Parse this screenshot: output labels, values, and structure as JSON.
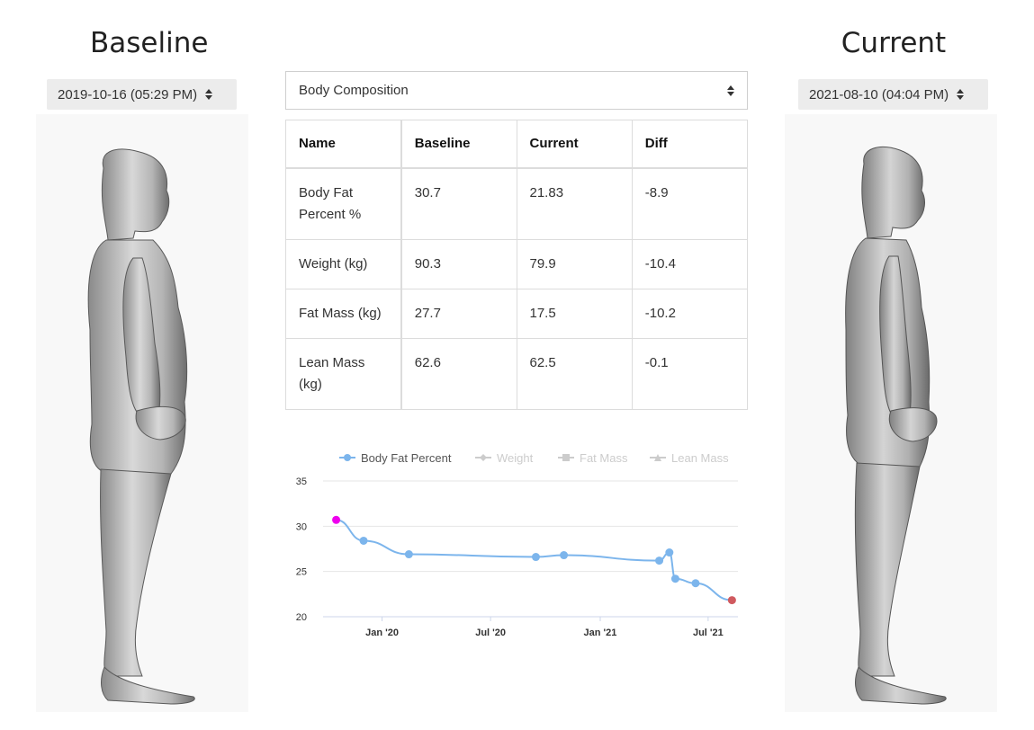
{
  "baseline": {
    "title": "Baseline",
    "date": "2019-10-16 (05:29 PM)"
  },
  "current": {
    "title": "Current",
    "date": "2021-08-10 (04:04 PM)"
  },
  "metric_select": {
    "value": "Body Composition"
  },
  "table": {
    "headers": [
      "Name",
      "Baseline",
      "Current",
      "Diff"
    ],
    "rows": [
      [
        "Body Fat Percent %",
        "30.7",
        "21.83",
        "-8.9"
      ],
      [
        "Weight (kg)",
        "90.3",
        "79.9",
        "-10.4"
      ],
      [
        "Fat Mass (kg)",
        "27.7",
        "17.5",
        "-10.2"
      ],
      [
        "Lean Mass (kg)",
        "62.6",
        "62.5",
        "-0.1"
      ]
    ]
  },
  "chart_data": {
    "type": "line",
    "title": "",
    "xlabel": "",
    "ylabel": "",
    "ylim": [
      20,
      35
    ],
    "yticks": [
      35,
      30,
      25,
      20
    ],
    "xticks": [
      {
        "label": "Jan '20",
        "date": "2020-01-01"
      },
      {
        "label": "Jul '20",
        "date": "2020-07-01"
      },
      {
        "label": "Jan '21",
        "date": "2021-01-01"
      },
      {
        "label": "Jul '21",
        "date": "2021-07-01"
      }
    ],
    "xlim": [
      "2019-09-24",
      "2021-08-20"
    ],
    "grid": true,
    "legend_position": "top",
    "legend": [
      {
        "name": "Body Fat Percent",
        "marker": "circle",
        "active": true
      },
      {
        "name": "Weight",
        "marker": "diamond",
        "active": false
      },
      {
        "name": "Fat Mass",
        "marker": "square",
        "active": false
      },
      {
        "name": "Lean Mass",
        "marker": "triangle",
        "active": false
      }
    ],
    "series": [
      {
        "name": "Body Fat Percent",
        "color": "#7cb5ec",
        "points": [
          {
            "x": "2019-10-16",
            "y": 30.7
          },
          {
            "x": "2019-12-01",
            "y": 28.4
          },
          {
            "x": "2020-02-15",
            "y": 26.9
          },
          {
            "x": "2020-09-15",
            "y": 26.6
          },
          {
            "x": "2020-11-01",
            "y": 26.8
          },
          {
            "x": "2021-04-10",
            "y": 26.2
          },
          {
            "x": "2021-04-27",
            "y": 27.1
          },
          {
            "x": "2021-05-07",
            "y": 24.2
          },
          {
            "x": "2021-06-10",
            "y": 23.7
          },
          {
            "x": "2021-08-10",
            "y": 21.83
          }
        ]
      }
    ],
    "highlight_colors": {
      "baseline": "#ee00ee",
      "current": "#d05a5f"
    }
  },
  "colors": {
    "grid": "#e6e6e6",
    "axis": "#ccd6eb",
    "legend_active": "#333333",
    "legend_inactive": "#cccccc"
  }
}
